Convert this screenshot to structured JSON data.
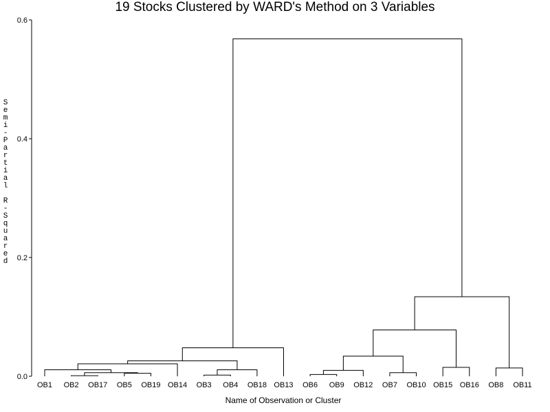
{
  "chart_data": {
    "type": "dendrogram",
    "title": "19 Stocks Clustered by WARD's Method on 3 Variables",
    "xlabel": "Name of Observation or Cluster",
    "ylabel": "Semi-Partial R-Squared",
    "ylim": [
      0,
      0.6
    ],
    "yticks": [
      "0.0",
      "0.2",
      "0.4",
      "0.6"
    ],
    "leaves": [
      "OB1",
      "OB2",
      "OB17",
      "OB5",
      "OB19",
      "OB14",
      "OB3",
      "OB4",
      "OB18",
      "OB13",
      "OB6",
      "OB9",
      "OB12",
      "OB7",
      "OB10",
      "OB15",
      "OB16",
      "OB8",
      "OB11"
    ],
    "merges": [
      {
        "id": "C1",
        "left": "OB2",
        "right": "OB17",
        "height": 0.001
      },
      {
        "id": "C2",
        "left": "OB5",
        "right": "OB19",
        "height": 0.005
      },
      {
        "id": "C3",
        "left": "C1",
        "right": "C2",
        "height": 0.006
      },
      {
        "id": "C4",
        "left": "OB1",
        "right": "C3",
        "height": 0.011
      },
      {
        "id": "C5",
        "left": "C4",
        "right": "OB14",
        "height": 0.021
      },
      {
        "id": "C6",
        "left": "OB3",
        "right": "OB4",
        "height": 0.002
      },
      {
        "id": "C7",
        "left": "C6",
        "right": "OB18",
        "height": 0.011
      },
      {
        "id": "C8",
        "left": "C5",
        "right": "C7",
        "height": 0.026
      },
      {
        "id": "C9",
        "left": "C8",
        "right": "OB13",
        "height": 0.048
      },
      {
        "id": "C10",
        "left": "OB6",
        "right": "OB9",
        "height": 0.003
      },
      {
        "id": "C11",
        "left": "C10",
        "right": "OB12",
        "height": 0.01
      },
      {
        "id": "C12",
        "left": "OB7",
        "right": "OB10",
        "height": 0.006
      },
      {
        "id": "C13",
        "left": "C11",
        "right": "C12",
        "height": 0.034
      },
      {
        "id": "C14",
        "left": "OB15",
        "right": "OB16",
        "height": 0.015
      },
      {
        "id": "C15",
        "left": "C13",
        "right": "C14",
        "height": 0.078
      },
      {
        "id": "C16",
        "left": "OB8",
        "right": "OB11",
        "height": 0.014
      },
      {
        "id": "C17",
        "left": "C15",
        "right": "C16",
        "height": 0.134
      },
      {
        "id": "C18",
        "left": "C9",
        "right": "C17",
        "height": 0.568
      }
    ]
  }
}
